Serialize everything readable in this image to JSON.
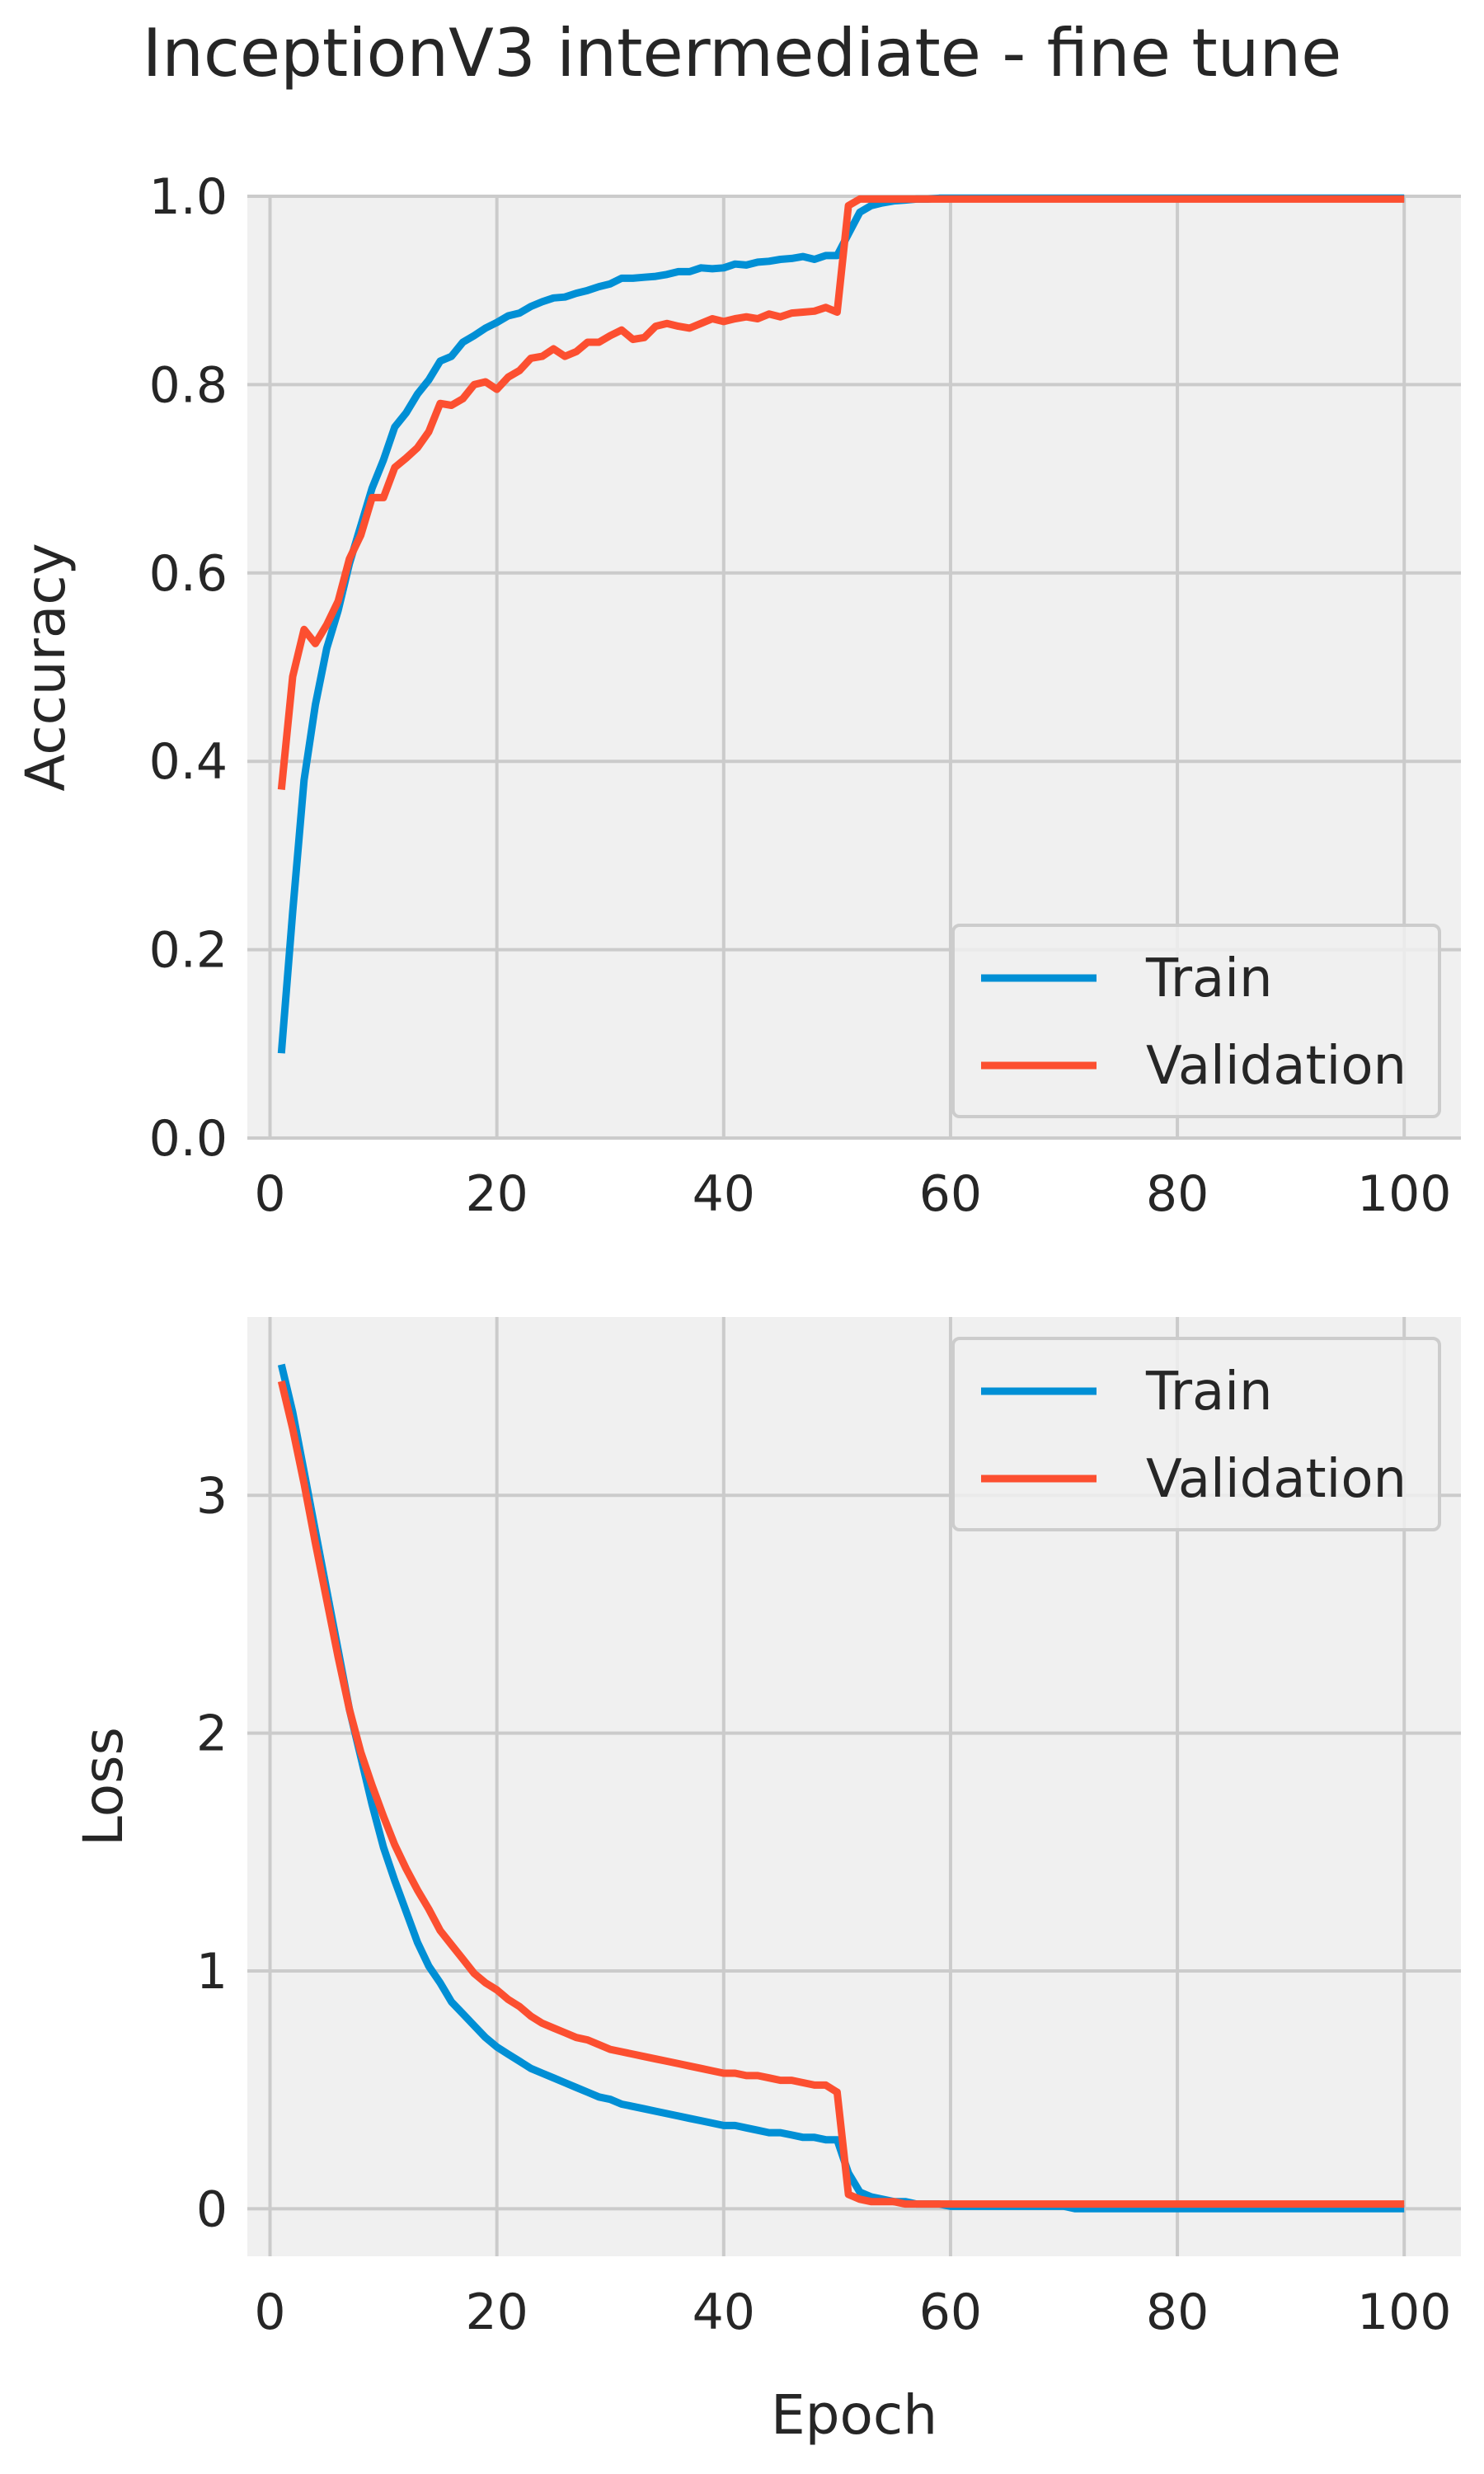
{
  "figure": {
    "title": "InceptionV3 intermediate - fine tune"
  },
  "colors": {
    "Train": "#008fd5",
    "Validation": "#fc4f30",
    "axes_background": "#f0f0f0",
    "grid": "#cbcbcb"
  },
  "chart_data": [
    {
      "type": "line",
      "ylabel": "Accuracy",
      "xlabel": "",
      "xlim": [
        -2,
        105
      ],
      "ylim": [
        0,
        1
      ],
      "xticks": [
        "0",
        "20",
        "40",
        "60",
        "80",
        "100"
      ],
      "yticks": [
        "0.0",
        "0.2",
        "0.4",
        "0.6",
        "0.8",
        "1.0"
      ],
      "grid": true,
      "legend": "lower right",
      "x": [
        1,
        2,
        3,
        4,
        5,
        6,
        7,
        8,
        9,
        10,
        11,
        12,
        13,
        14,
        15,
        16,
        17,
        18,
        19,
        20,
        21,
        22,
        23,
        24,
        25,
        26,
        27,
        28,
        29,
        30,
        31,
        32,
        33,
        34,
        35,
        36,
        37,
        38,
        39,
        40,
        41,
        42,
        43,
        44,
        45,
        46,
        47,
        48,
        49,
        50,
        51,
        52,
        53,
        54,
        55,
        56,
        57,
        58,
        59,
        60,
        61,
        62,
        63,
        64,
        65,
        66,
        67,
        68,
        69,
        70,
        71,
        72,
        73,
        74,
        75,
        76,
        77,
        78,
        79,
        80,
        81,
        82,
        83,
        84,
        85,
        86,
        87,
        88,
        89,
        90,
        91,
        92,
        93,
        94,
        95,
        96,
        97,
        98,
        99,
        100
      ],
      "series": [
        {
          "name": "Train",
          "values": [
            0.09,
            0.24,
            0.38,
            0.46,
            0.52,
            0.56,
            0.61,
            0.65,
            0.69,
            0.72,
            0.755,
            0.77,
            0.79,
            0.805,
            0.825,
            0.83,
            0.845,
            0.852,
            0.86,
            0.866,
            0.873,
            0.876,
            0.883,
            0.888,
            0.892,
            0.893,
            0.897,
            0.9,
            0.904,
            0.907,
            0.913,
            0.913,
            0.914,
            0.915,
            0.917,
            0.92,
            0.92,
            0.924,
            0.923,
            0.924,
            0.928,
            0.927,
            0.93,
            0.931,
            0.933,
            0.934,
            0.936,
            0.933,
            0.937,
            0.937,
            0.96,
            0.983,
            0.99,
            0.993,
            0.995,
            0.996,
            0.997,
            0.997,
            0.998,
            0.998,
            0.998,
            0.998,
            0.998,
            0.998,
            0.998,
            0.998,
            0.998,
            0.998,
            0.998,
            0.998,
            0.998,
            0.998,
            0.998,
            0.998,
            0.998,
            0.998,
            0.998,
            0.998,
            0.998,
            0.998,
            0.998,
            0.998,
            0.998,
            0.998,
            0.998,
            0.998,
            0.998,
            0.998,
            0.998,
            0.998,
            0.998,
            0.998,
            0.998,
            0.998,
            0.998,
            0.998,
            0.998,
            0.998,
            0.998,
            0.998
          ]
        },
        {
          "name": "Validation",
          "values": [
            0.37,
            0.49,
            0.54,
            0.525,
            0.545,
            0.57,
            0.615,
            0.64,
            0.68,
            0.68,
            0.712,
            0.722,
            0.733,
            0.75,
            0.78,
            0.778,
            0.785,
            0.8,
            0.803,
            0.795,
            0.808,
            0.815,
            0.828,
            0.83,
            0.838,
            0.83,
            0.835,
            0.845,
            0.845,
            0.852,
            0.858,
            0.848,
            0.85,
            0.862,
            0.865,
            0.862,
            0.86,
            0.865,
            0.87,
            0.867,
            0.87,
            0.872,
            0.87,
            0.875,
            0.872,
            0.876,
            0.877,
            0.878,
            0.882,
            0.877,
            0.99,
            0.997,
            0.997,
            0.997,
            0.997,
            0.997,
            0.997,
            0.997,
            0.997,
            0.997,
            0.997,
            0.997,
            0.997,
            0.997,
            0.997,
            0.997,
            0.997,
            0.997,
            0.997,
            0.997,
            0.997,
            0.997,
            0.997,
            0.997,
            0.997,
            0.997,
            0.997,
            0.997,
            0.997,
            0.997,
            0.997,
            0.997,
            0.997,
            0.997,
            0.997,
            0.997,
            0.997,
            0.997,
            0.997,
            0.997,
            0.997,
            0.997,
            0.997,
            0.997,
            0.997,
            0.997,
            0.997,
            0.997,
            0.997,
            0.997
          ]
        }
      ]
    },
    {
      "type": "line",
      "ylabel": "Loss",
      "xlabel": "Epoch",
      "xlim": [
        -2,
        105
      ],
      "ylim": [
        -0.2,
        3.75
      ],
      "xticks": [
        "0",
        "20",
        "40",
        "60",
        "80",
        "100"
      ],
      "yticks": [
        "0",
        "1",
        "2",
        "3"
      ],
      "grid": true,
      "legend": "upper right",
      "x": [
        1,
        2,
        3,
        4,
        5,
        6,
        7,
        8,
        9,
        10,
        11,
        12,
        13,
        14,
        15,
        16,
        17,
        18,
        19,
        20,
        21,
        22,
        23,
        24,
        25,
        26,
        27,
        28,
        29,
        30,
        31,
        32,
        33,
        34,
        35,
        36,
        37,
        38,
        39,
        40,
        41,
        42,
        43,
        44,
        45,
        46,
        47,
        48,
        49,
        50,
        51,
        52,
        53,
        54,
        55,
        56,
        57,
        58,
        59,
        60,
        61,
        62,
        63,
        64,
        65,
        66,
        67,
        68,
        69,
        70,
        71,
        72,
        73,
        74,
        75,
        76,
        77,
        78,
        79,
        80,
        81,
        82,
        83,
        84,
        85,
        86,
        87,
        88,
        89,
        90,
        91,
        92,
        93,
        94,
        95,
        96,
        97,
        98,
        99,
        100
      ],
      "series": [
        {
          "name": "Train",
          "values": [
            3.55,
            3.35,
            3.1,
            2.85,
            2.6,
            2.35,
            2.1,
            1.9,
            1.7,
            1.52,
            1.38,
            1.25,
            1.12,
            1.02,
            0.95,
            0.87,
            0.82,
            0.77,
            0.72,
            0.68,
            0.65,
            0.62,
            0.59,
            0.57,
            0.55,
            0.53,
            0.51,
            0.49,
            0.47,
            0.46,
            0.44,
            0.43,
            0.42,
            0.41,
            0.4,
            0.39,
            0.38,
            0.37,
            0.36,
            0.35,
            0.35,
            0.34,
            0.33,
            0.32,
            0.32,
            0.31,
            0.3,
            0.3,
            0.29,
            0.29,
            0.15,
            0.07,
            0.05,
            0.04,
            0.03,
            0.03,
            0.02,
            0.02,
            0.02,
            0.01,
            0.01,
            0.01,
            0.01,
            0.01,
            0.01,
            0.01,
            0.01,
            0.01,
            0.01,
            0.01,
            0.0,
            0.0,
            0.0,
            0.0,
            0.0,
            0.0,
            0.0,
            0.0,
            0.0,
            0.0,
            0.0,
            0.0,
            0.0,
            0.0,
            0.0,
            0.0,
            0.0,
            0.0,
            0.0,
            0.0,
            0.0,
            0.0,
            0.0,
            0.0,
            0.0,
            0.0,
            0.0,
            0.0,
            0.0,
            0.0
          ]
        },
        {
          "name": "Validation",
          "values": [
            3.48,
            3.28,
            3.05,
            2.8,
            2.56,
            2.32,
            2.1,
            1.92,
            1.78,
            1.65,
            1.53,
            1.43,
            1.34,
            1.26,
            1.17,
            1.11,
            1.05,
            0.99,
            0.95,
            0.92,
            0.88,
            0.85,
            0.81,
            0.78,
            0.76,
            0.74,
            0.72,
            0.71,
            0.69,
            0.67,
            0.66,
            0.65,
            0.64,
            0.63,
            0.62,
            0.61,
            0.6,
            0.59,
            0.58,
            0.57,
            0.57,
            0.56,
            0.56,
            0.55,
            0.54,
            0.54,
            0.53,
            0.52,
            0.52,
            0.49,
            0.06,
            0.04,
            0.03,
            0.03,
            0.03,
            0.02,
            0.02,
            0.02,
            0.02,
            0.02,
            0.02,
            0.02,
            0.02,
            0.02,
            0.02,
            0.02,
            0.02,
            0.02,
            0.02,
            0.02,
            0.02,
            0.02,
            0.02,
            0.02,
            0.02,
            0.02,
            0.02,
            0.02,
            0.02,
            0.02,
            0.02,
            0.02,
            0.02,
            0.02,
            0.02,
            0.02,
            0.02,
            0.02,
            0.02,
            0.02,
            0.02,
            0.02,
            0.02,
            0.02,
            0.02,
            0.02,
            0.02,
            0.02,
            0.02,
            0.02
          ]
        }
      ]
    }
  ]
}
